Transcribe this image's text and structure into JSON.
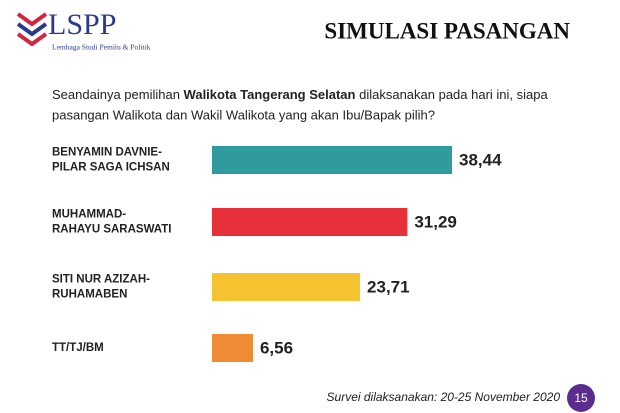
{
  "logo": {
    "name": "LSPP",
    "tagline": "Lembaga Studi Pemilu & Politik"
  },
  "chart_data": {
    "type": "barh",
    "title": "SIMULASI PASANGAN",
    "question": [
      "Seandainya pemilihan ",
      "Walikota Tangerang Selatan",
      " dilaksanakan pada hari ini, siapa",
      "pasangan Walikota dan Wakil Walikota yang akan Ibu/Bapak pilih?"
    ],
    "categories": [
      [
        "BENYAMIN DAVNIE-",
        "PILAR SAGA ICHSAN"
      ],
      [
        "MUHAMMAD-",
        "RAHAYU SARASWATI"
      ],
      [
        "SITI NUR AZIZAH-",
        "RUHAMABEN"
      ],
      [
        "TT/TJ/BM"
      ]
    ],
    "values": [
      38.44,
      31.29,
      23.71,
      6.56
    ],
    "value_labels": [
      "38,44",
      "31,29",
      "23,71",
      "6,56"
    ],
    "colors": [
      "#2f9b9c",
      "#e8303a",
      "#f5c330",
      "#f08a35"
    ],
    "footnote": "Survei dilaksanakan: 20-25 November 2020",
    "page_number": "15"
  }
}
